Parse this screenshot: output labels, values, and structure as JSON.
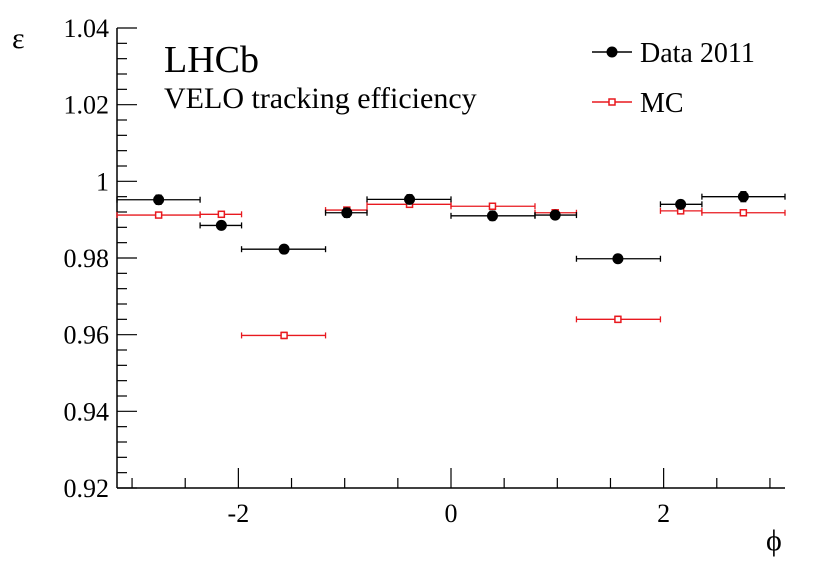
{
  "chart_data": {
    "type": "scatter",
    "title": "LHCb",
    "subtitle": "VELO tracking efficiency",
    "xlabel": "ϕ",
    "ylabel": "ε",
    "xlim": [
      -3.1416,
      3.1416
    ],
    "ylim": [
      0.92,
      1.04
    ],
    "xticks": [
      -2,
      0,
      2
    ],
    "xtick_labels": [
      "-2",
      "0",
      "2"
    ],
    "yticks": [
      0.92,
      0.94,
      0.96,
      0.98,
      1.0,
      1.02,
      1.04
    ],
    "ytick_labels": [
      "0.92",
      "0.94",
      "0.96",
      "0.98",
      "1",
      "1.02",
      "1.04"
    ],
    "grid": false,
    "legend_position": "top-right",
    "series": [
      {
        "name": "Data 2011",
        "color": "#000000",
        "marker": "filled-circle",
        "points": [
          {
            "x": -2.75,
            "xlow": -3.1416,
            "xhigh": -2.36,
            "y": 0.9952,
            "yerr": 0.0012
          },
          {
            "x": -2.16,
            "xlow": -2.36,
            "xhigh": -1.97,
            "y": 0.9885,
            "yerr": 0.001
          },
          {
            "x": -1.57,
            "xlow": -1.97,
            "xhigh": -1.18,
            "y": 0.9823,
            "yerr": 0.0007
          },
          {
            "x": -0.98,
            "xlow": -1.18,
            "xhigh": -0.79,
            "y": 0.9918,
            "yerr": 0.0012
          },
          {
            "x": -0.39,
            "xlow": -0.79,
            "xhigh": 0.0,
            "y": 0.9953,
            "yerr": 0.0012
          },
          {
            "x": 0.39,
            "xlow": 0.0,
            "xhigh": 0.79,
            "y": 0.991,
            "yerr": 0.0012
          },
          {
            "x": 0.98,
            "xlow": 0.79,
            "xhigh": 1.18,
            "y": 0.9912,
            "yerr": 0.001
          },
          {
            "x": 1.57,
            "xlow": 1.18,
            "xhigh": 1.97,
            "y": 0.9798,
            "yerr": 0.0006
          },
          {
            "x": 2.16,
            "xlow": 1.97,
            "xhigh": 2.36,
            "y": 0.994,
            "yerr": 0.001
          },
          {
            "x": 2.75,
            "xlow": 2.36,
            "xhigh": 3.1416,
            "y": 0.996,
            "yerr": 0.0013
          }
        ]
      },
      {
        "name": "MC",
        "color": "#e8191f",
        "marker": "open-square",
        "points": [
          {
            "x": -2.75,
            "xlow": -3.1416,
            "xhigh": -2.36,
            "y": 0.9912,
            "yerr": 0.0004
          },
          {
            "x": -2.16,
            "xlow": -2.36,
            "xhigh": -1.97,
            "y": 0.9914,
            "yerr": 0.0005
          },
          {
            "x": -1.57,
            "xlow": -1.97,
            "xhigh": -1.18,
            "y": 0.9598,
            "yerr": 0.0008
          },
          {
            "x": -0.98,
            "xlow": -1.18,
            "xhigh": -0.79,
            "y": 0.9925,
            "yerr": 0.0005
          },
          {
            "x": -0.39,
            "xlow": -0.79,
            "xhigh": 0.0,
            "y": 0.994,
            "yerr": 0.0004
          },
          {
            "x": 0.39,
            "xlow": 0.0,
            "xhigh": 0.79,
            "y": 0.9935,
            "yerr": 0.0004
          },
          {
            "x": 0.98,
            "xlow": 0.79,
            "xhigh": 1.18,
            "y": 0.9918,
            "yerr": 0.0005
          },
          {
            "x": 1.57,
            "xlow": 1.18,
            "xhigh": 1.97,
            "y": 0.964,
            "yerr": 0.0008
          },
          {
            "x": 2.16,
            "xlow": 1.97,
            "xhigh": 2.36,
            "y": 0.9923,
            "yerr": 0.0005
          },
          {
            "x": 2.75,
            "xlow": 2.36,
            "xhigh": 3.1416,
            "y": 0.9918,
            "yerr": 0.0004
          }
        ]
      }
    ]
  }
}
